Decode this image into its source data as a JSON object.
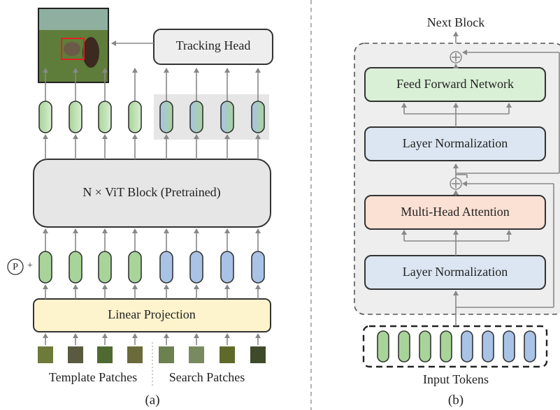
{
  "panel_a": {
    "tracking_head": "Tracking Head",
    "vit_block": "N × ViT Block (Pretrained)",
    "position_symbol": "P",
    "position_plus": "+",
    "linear_projection": "Linear Projection",
    "template_label": "Template Patches",
    "search_label": "Search Patches",
    "caption": "(a)"
  },
  "panel_b": {
    "next_block": "Next Block",
    "blocks": [
      "Feed Forward Network",
      "Layer Normalization",
      "Multi-Head Attention",
      "Layer Normalization"
    ],
    "input_tokens": "Input Tokens",
    "caption": "(b)"
  }
}
